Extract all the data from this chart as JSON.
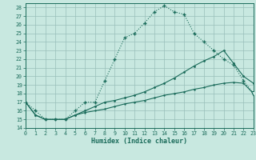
{
  "xlabel": "Humidex (Indice chaleur)",
  "xlim": [
    0,
    23
  ],
  "ylim": [
    14,
    28.5
  ],
  "xticks": [
    0,
    1,
    2,
    3,
    4,
    5,
    6,
    7,
    8,
    9,
    10,
    11,
    12,
    13,
    14,
    15,
    16,
    17,
    18,
    19,
    20,
    21,
    22,
    23
  ],
  "yticks": [
    14,
    15,
    16,
    17,
    18,
    19,
    20,
    21,
    22,
    23,
    24,
    25,
    26,
    27,
    28
  ],
  "bg_color": "#c8e8e0",
  "grid_color": "#9abfba",
  "line_color": "#1a6b5a",
  "line1_x": [
    0,
    1,
    2,
    3,
    4,
    5,
    6,
    7,
    8,
    9,
    10,
    11,
    12,
    13,
    14,
    15,
    16,
    17,
    18,
    19,
    20,
    21,
    22,
    23
  ],
  "line1_y": [
    17,
    16,
    15,
    15,
    15,
    16,
    17,
    17,
    19.5,
    22,
    24.5,
    25,
    26.2,
    27.5,
    28.2,
    27.5,
    27.2,
    25,
    24,
    23,
    22,
    21.3,
    19.5,
    18.0
  ],
  "line2_x": [
    0,
    1,
    2,
    3,
    4,
    5,
    6,
    7,
    8,
    9,
    10,
    11,
    12,
    13,
    14,
    15,
    16,
    17,
    18,
    19,
    20,
    21,
    22,
    23
  ],
  "line2_y": [
    17,
    15.5,
    15,
    15,
    15,
    15.5,
    16,
    16.5,
    17,
    17.2,
    17.5,
    17.8,
    18.2,
    18.7,
    19.2,
    19.8,
    20.5,
    21.2,
    21.8,
    22.3,
    23.0,
    21.5,
    20.0,
    19.2
  ],
  "line3_x": [
    0,
    1,
    2,
    3,
    4,
    5,
    6,
    7,
    8,
    9,
    10,
    11,
    12,
    13,
    14,
    15,
    16,
    17,
    18,
    19,
    20,
    21,
    22,
    23
  ],
  "line3_y": [
    17,
    15.5,
    15,
    15,
    15,
    15.5,
    15.8,
    16,
    16.2,
    16.5,
    16.8,
    17.0,
    17.2,
    17.5,
    17.8,
    18.0,
    18.2,
    18.5,
    18.7,
    19.0,
    19.2,
    19.3,
    19.2,
    18.0
  ]
}
